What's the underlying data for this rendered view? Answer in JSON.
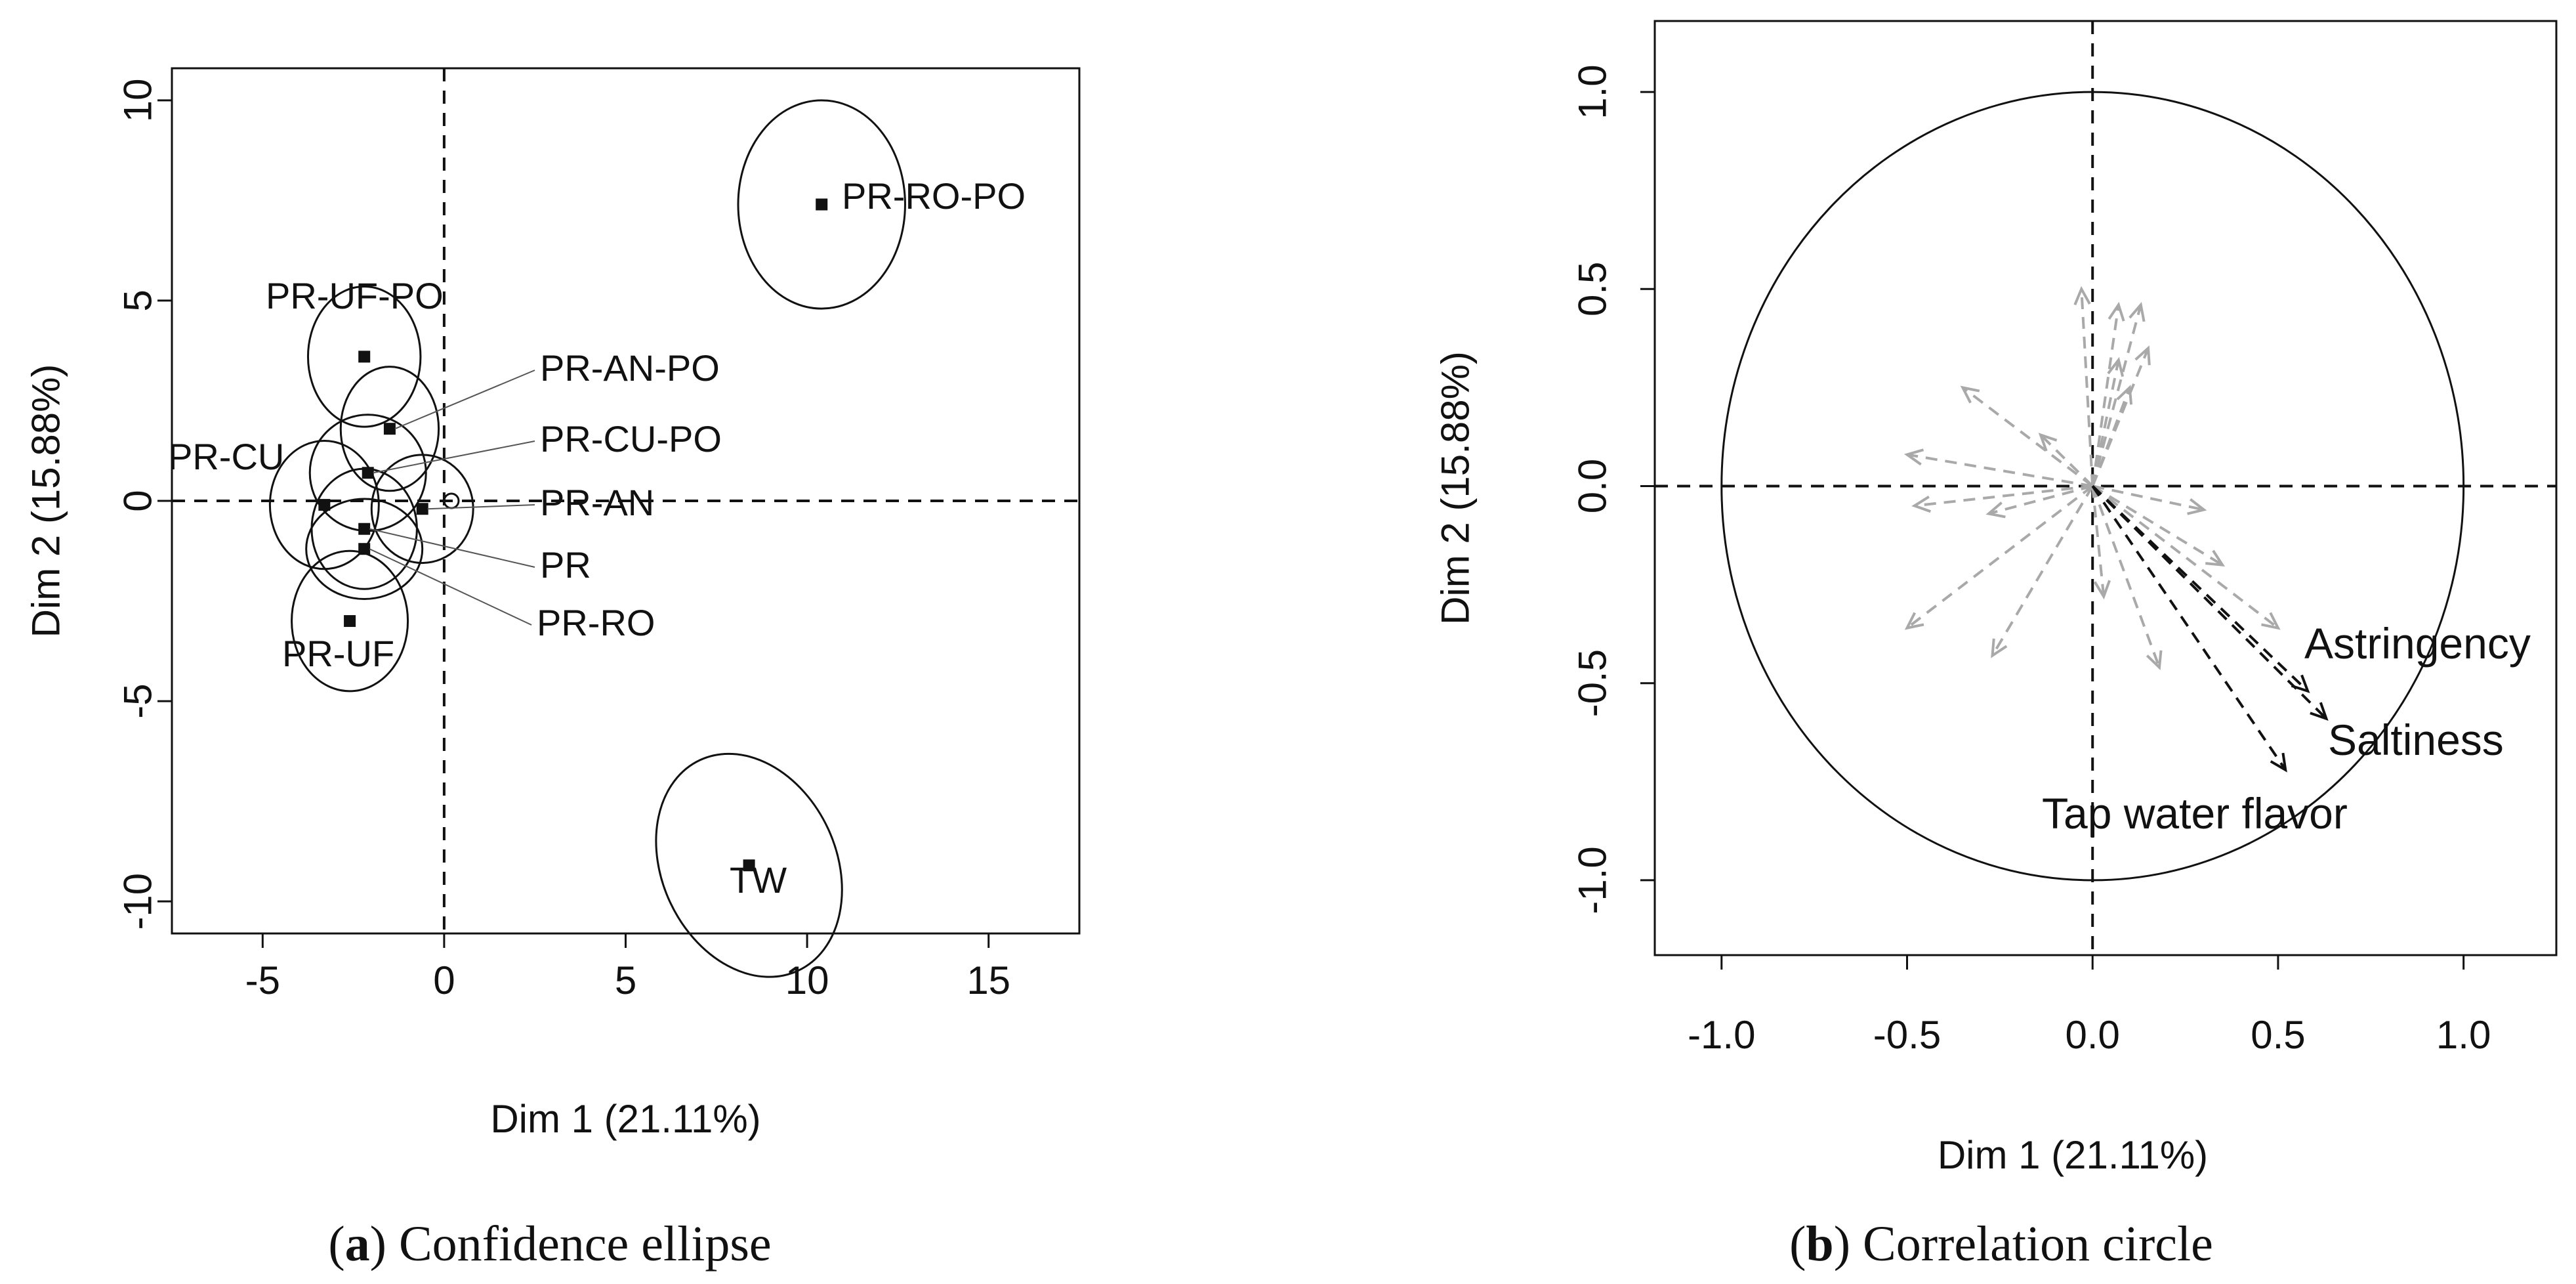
{
  "chart_data": [
    {
      "type": "scatter",
      "caption_letter": "a",
      "caption_text": "Confidence ellipse",
      "xlabel": "Dim 1 (21.11%)",
      "ylabel": "Dim 2 (15.88%)",
      "xlim": [
        -7.5,
        17.5
      ],
      "ylim": [
        -10.8,
        10.8
      ],
      "xticks": [
        -5,
        0,
        5,
        10,
        15
      ],
      "yticks": [
        -10,
        -5,
        0,
        5,
        10
      ],
      "points": [
        {
          "name": "PR-RO-PO",
          "x": 10.4,
          "y": 7.4,
          "ellipse": {
            "rx": 2.3,
            "ry": 2.6,
            "rot": 0
          }
        },
        {
          "name": "PR-UF-PO",
          "x": -2.2,
          "y": 3.6,
          "ellipse": {
            "rx": 1.55,
            "ry": 1.75,
            "rot": 0
          }
        },
        {
          "name": "PR-AN-PO",
          "x": -1.5,
          "y": 1.8,
          "ellipse": {
            "rx": 1.35,
            "ry": 1.55,
            "rot": 0
          }
        },
        {
          "name": "PR-CU-PO",
          "x": -2.1,
          "y": 0.7,
          "ellipse": {
            "rx": 1.6,
            "ry": 1.45,
            "rot": 0
          }
        },
        {
          "name": "PR-CU",
          "x": -3.3,
          "y": -0.1,
          "ellipse": {
            "rx": 1.5,
            "ry": 1.6,
            "rot": 0
          }
        },
        {
          "name": "PR-AN",
          "x": -0.6,
          "y": -0.2,
          "ellipse": {
            "rx": 1.4,
            "ry": 1.35,
            "rot": 0
          }
        },
        {
          "name": "PR",
          "x": -2.2,
          "y": -0.7,
          "ellipse": {
            "rx": 1.45,
            "ry": 1.5,
            "rot": 0
          }
        },
        {
          "name": "PR-RO",
          "x": -2.2,
          "y": -1.2,
          "ellipse": {
            "rx": 1.6,
            "ry": 1.25,
            "rot": 0
          }
        },
        {
          "name": "PR-UF",
          "x": -2.6,
          "y": -3.0,
          "ellipse": {
            "rx": 1.6,
            "ry": 1.75,
            "rot": 0
          }
        },
        {
          "name": "TW",
          "x": 8.4,
          "y": -9.1,
          "ellipse": {
            "rx": 2.4,
            "ry": 2.9,
            "rot": -25
          }
        }
      ],
      "supplementary_point": {
        "x": 0.2,
        "y": 0.0
      }
    },
    {
      "type": "scatter",
      "caption_letter": "b",
      "caption_text": "Correlation circle",
      "xlabel": "Dim 1 (21.11%)",
      "ylabel": "Dim 2 (15.88%)",
      "xlim": [
        -1.18,
        1.25
      ],
      "ylim": [
        -1.19,
        1.18
      ],
      "xticks": [
        -1.0,
        -0.5,
        0.0,
        0.5,
        1.0
      ],
      "yticks": [
        -1.0,
        -0.5,
        0.0,
        0.5,
        1.0
      ],
      "xtick_labels": [
        "-1.0",
        "-0.5",
        "0.0",
        "0.5",
        "1.0"
      ],
      "ytick_labels": [
        "-1.0",
        "-0.5",
        "0.0",
        "0.5",
        "1.0"
      ],
      "highlighted_vectors": [
        {
          "name": "Astringency",
          "x": 0.58,
          "y": -0.52
        },
        {
          "name": "Saltiness",
          "x": 0.63,
          "y": -0.59
        },
        {
          "name": "Tap water flavor",
          "x": 0.52,
          "y": -0.72
        }
      ],
      "other_vectors": [
        {
          "x": -0.03,
          "y": 0.5
        },
        {
          "x": 0.07,
          "y": 0.46
        },
        {
          "x": 0.13,
          "y": 0.46
        },
        {
          "x": 0.15,
          "y": 0.35
        },
        {
          "x": 0.07,
          "y": 0.32
        },
        {
          "x": 0.1,
          "y": 0.25
        },
        {
          "x": -0.35,
          "y": 0.25
        },
        {
          "x": -0.14,
          "y": 0.13
        },
        {
          "x": -0.5,
          "y": 0.08
        },
        {
          "x": -0.48,
          "y": -0.05
        },
        {
          "x": -0.28,
          "y": -0.07
        },
        {
          "x": 0.3,
          "y": -0.06
        },
        {
          "x": -0.5,
          "y": -0.36
        },
        {
          "x": -0.27,
          "y": -0.43
        },
        {
          "x": 0.18,
          "y": -0.46
        },
        {
          "x": 0.5,
          "y": -0.36
        },
        {
          "x": 0.35,
          "y": -0.2
        },
        {
          "x": 0.03,
          "y": -0.28
        }
      ]
    }
  ]
}
